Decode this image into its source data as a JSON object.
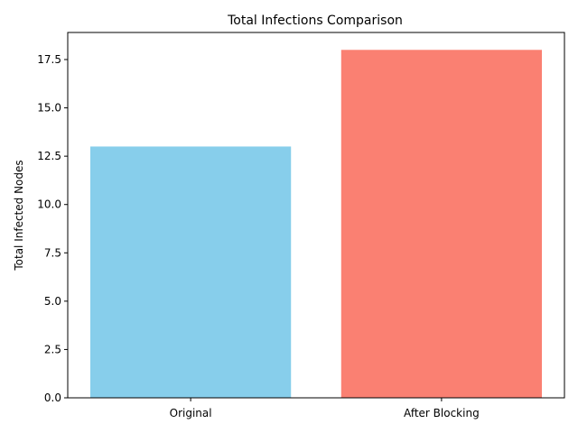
{
  "chart_data": {
    "type": "bar",
    "title": "Total Infections Comparison",
    "xlabel": "",
    "ylabel": "Total Infected Nodes",
    "categories": [
      "Original",
      "After Blocking"
    ],
    "values": [
      13,
      18
    ],
    "colors": [
      "#87ceeb",
      "#fa8072"
    ],
    "ylim": [
      0,
      18.9
    ],
    "yticks": [
      0.0,
      2.5,
      5.0,
      7.5,
      10.0,
      12.5,
      15.0,
      17.5
    ],
    "ytick_labels": [
      "0.0",
      "2.5",
      "5.0",
      "7.5",
      "10.0",
      "12.5",
      "15.0",
      "17.5"
    ],
    "grid": false,
    "legend": "none"
  }
}
